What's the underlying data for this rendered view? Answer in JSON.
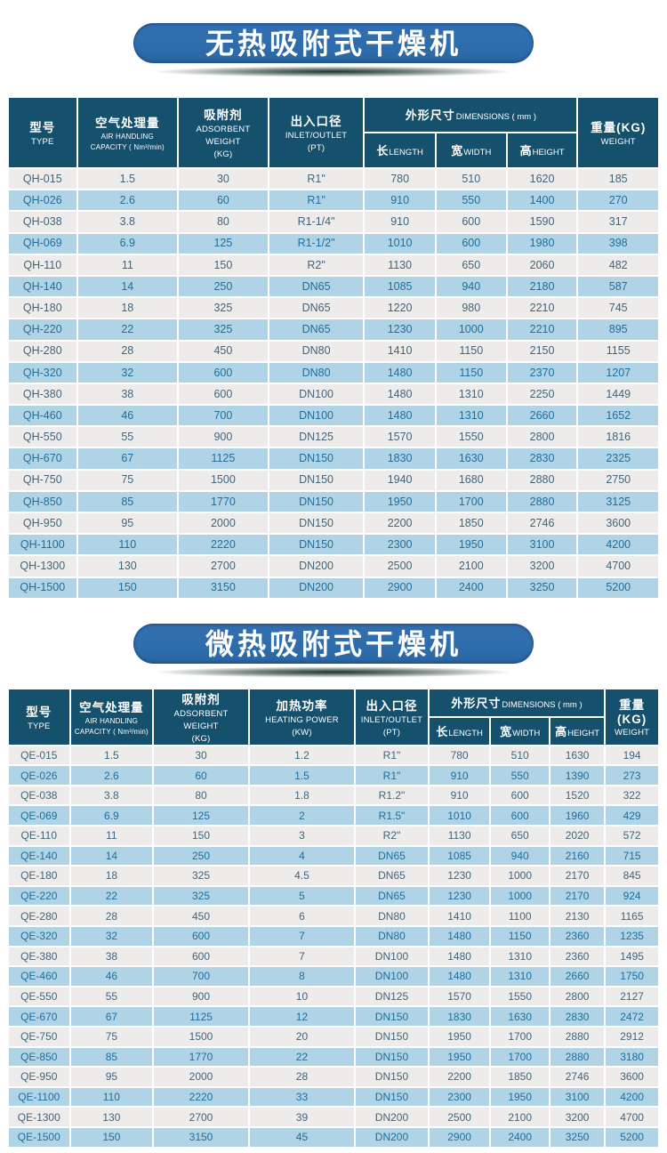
{
  "colors": {
    "title_blue": "#2e6dac",
    "header_blue": "#15506d",
    "row_light": "#edecea",
    "row_blue": "#b0d4e5",
    "text_light_row": "#42647a",
    "text_blue_row": "#206e9c"
  },
  "sections": [
    {
      "title": "无热吸附式干燥机",
      "columns": [
        {
          "id": "type",
          "zh": "型号",
          "en_lines": [
            "TYPE"
          ]
        },
        {
          "id": "air-handling",
          "zh": "空气处理量",
          "en_lines": [
            "AIR HANDLING",
            "CAPACITY ( Nm³/min)"
          ],
          "small": true
        },
        {
          "id": "adsorbent",
          "zh": "吸附剂",
          "en_lines": [
            "ADSORBENT",
            "WEIGHT",
            "(KG)"
          ]
        },
        {
          "id": "inlet-outlet",
          "zh": "出入口径",
          "en_lines": [
            "INLET/OUTLET",
            "(PT)"
          ]
        },
        {
          "id": "dimensions",
          "group": true,
          "zh": "外形尺寸",
          "en": "DIMENSIONS ( mm )",
          "children": [
            {
              "id": "length",
              "zh": "长",
              "en": "LENGTH"
            },
            {
              "id": "width",
              "zh": "宽",
              "en": "WIDTH"
            },
            {
              "id": "height",
              "zh": "高",
              "en": "HEIGHT"
            }
          ]
        },
        {
          "id": "weight",
          "zh": "重量(KG)",
          "en_lines": [
            "WEIGHT"
          ]
        }
      ],
      "rows": [
        [
          "QH-015",
          "1.5",
          "30",
          "R1\"",
          "780",
          "510",
          "1620",
          "185"
        ],
        [
          "QH-026",
          "2.6",
          "60",
          "R1\"",
          "910",
          "550",
          "1400",
          "270"
        ],
        [
          "QH-038",
          "3.8",
          "80",
          "R1-1/4\"",
          "910",
          "600",
          "1590",
          "317"
        ],
        [
          "QH-069",
          "6.9",
          "125",
          "R1-1/2\"",
          "1010",
          "600",
          "1980",
          "398"
        ],
        [
          "QH-110",
          "11",
          "150",
          "R2\"",
          "1130",
          "650",
          "2060",
          "482"
        ],
        [
          "QH-140",
          "14",
          "250",
          "DN65",
          "1085",
          "940",
          "2180",
          "587"
        ],
        [
          "QH-180",
          "18",
          "325",
          "DN65",
          "1220",
          "980",
          "2210",
          "745"
        ],
        [
          "QH-220",
          "22",
          "325",
          "DN65",
          "1230",
          "1000",
          "2210",
          "895"
        ],
        [
          "QH-280",
          "28",
          "450",
          "DN80",
          "1410",
          "1150",
          "2150",
          "1155"
        ],
        [
          "QH-320",
          "32",
          "600",
          "DN80",
          "1480",
          "1150",
          "2370",
          "1207"
        ],
        [
          "QH-380",
          "38",
          "600",
          "DN100",
          "1480",
          "1310",
          "2250",
          "1449"
        ],
        [
          "QH-460",
          "46",
          "700",
          "DN100",
          "1480",
          "1310",
          "2660",
          "1652"
        ],
        [
          "QH-550",
          "55",
          "900",
          "DN125",
          "1570",
          "1550",
          "2800",
          "1816"
        ],
        [
          "QH-670",
          "67",
          "1125",
          "DN150",
          "1830",
          "1630",
          "2830",
          "2325"
        ],
        [
          "QH-750",
          "75",
          "1500",
          "DN150",
          "1940",
          "1680",
          "2880",
          "2750"
        ],
        [
          "QH-850",
          "85",
          "1770",
          "DN150",
          "1950",
          "1700",
          "2880",
          "3125"
        ],
        [
          "QH-950",
          "95",
          "2000",
          "DN150",
          "2200",
          "1850",
          "2746",
          "3600"
        ],
        [
          "QH-1100",
          "110",
          "2220",
          "DN150",
          "2300",
          "1950",
          "3100",
          "4200"
        ],
        [
          "QH-1300",
          "130",
          "2700",
          "DN200",
          "2500",
          "2100",
          "3200",
          "4700"
        ],
        [
          "QH-1500",
          "150",
          "3150",
          "DN200",
          "2900",
          "2400",
          "3250",
          "5200"
        ]
      ]
    },
    {
      "title": "微热吸附式干燥机",
      "columns": [
        {
          "id": "type",
          "zh": "型号",
          "en_lines": [
            "TYPE"
          ]
        },
        {
          "id": "air-handling",
          "zh": "空气处理量",
          "en_lines": [
            "AIR HANDLING",
            "CAPACITY ( Nm³/min)"
          ],
          "small": true
        },
        {
          "id": "adsorbent",
          "zh": "吸附剂",
          "en_lines": [
            "ADSORBENT",
            "WEIGHT",
            "(KG)"
          ]
        },
        {
          "id": "heating-power",
          "zh": "加热功率",
          "en_lines": [
            "HEATING POWER",
            "(KW)"
          ]
        },
        {
          "id": "inlet-outlet",
          "zh": "出入口径",
          "en_lines": [
            "INLET/OUTLET",
            "(PT)"
          ]
        },
        {
          "id": "dimensions",
          "group": true,
          "zh": "外形尺寸",
          "en": "DIMENSIONS ( mm )",
          "children": [
            {
              "id": "length",
              "zh": "长",
              "en": "LENGTH"
            },
            {
              "id": "width",
              "zh": "宽",
              "en": "WIDTH"
            },
            {
              "id": "height",
              "zh": "高",
              "en": "HEIGHT"
            }
          ]
        },
        {
          "id": "weight",
          "zh": "重量(KG)",
          "en_lines": [
            "WEIGHT"
          ]
        }
      ],
      "rows": [
        [
          "QE-015",
          "1.5",
          "30",
          "1.2",
          "R1\"",
          "780",
          "510",
          "1630",
          "194"
        ],
        [
          "QE-026",
          "2.6",
          "60",
          "1.5",
          "R1\"",
          "910",
          "550",
          "1390",
          "273"
        ],
        [
          "QE-038",
          "3.8",
          "80",
          "1.8",
          "R1.2\"",
          "910",
          "600",
          "1520",
          "322"
        ],
        [
          "QE-069",
          "6.9",
          "125",
          "2",
          "R1.5\"",
          "1010",
          "600",
          "1960",
          "429"
        ],
        [
          "QE-110",
          "11",
          "150",
          "3",
          "R2\"",
          "1130",
          "650",
          "2020",
          "572"
        ],
        [
          "QE-140",
          "14",
          "250",
          "4",
          "DN65",
          "1085",
          "940",
          "2160",
          "715"
        ],
        [
          "QE-180",
          "18",
          "325",
          "4.5",
          "DN65",
          "1230",
          "1000",
          "2170",
          "845"
        ],
        [
          "QE-220",
          "22",
          "325",
          "5",
          "DN65",
          "1230",
          "1000",
          "2170",
          "924"
        ],
        [
          "QE-280",
          "28",
          "450",
          "6",
          "DN80",
          "1410",
          "1100",
          "2130",
          "1165"
        ],
        [
          "QE-320",
          "32",
          "600",
          "7",
          "DN80",
          "1480",
          "1150",
          "2360",
          "1235"
        ],
        [
          "QE-380",
          "38",
          "600",
          "7",
          "DN100",
          "1480",
          "1310",
          "2360",
          "1495"
        ],
        [
          "QE-460",
          "46",
          "700",
          "8",
          "DN100",
          "1480",
          "1310",
          "2660",
          "1750"
        ],
        [
          "QE-550",
          "55",
          "900",
          "10",
          "DN125",
          "1570",
          "1550",
          "2800",
          "2127"
        ],
        [
          "QE-670",
          "67",
          "1125",
          "12",
          "DN150",
          "1830",
          "1630",
          "2830",
          "2472"
        ],
        [
          "QE-750",
          "75",
          "1500",
          "20",
          "DN150",
          "1950",
          "1700",
          "2880",
          "2912"
        ],
        [
          "QE-850",
          "85",
          "1770",
          "22",
          "DN150",
          "1950",
          "1700",
          "2880",
          "3180"
        ],
        [
          "QE-950",
          "95",
          "2000",
          "28",
          "DN150",
          "2200",
          "1850",
          "2746",
          "3600"
        ],
        [
          "QE-1100",
          "110",
          "2220",
          "33",
          "DN150",
          "2300",
          "1950",
          "3100",
          "4200"
        ],
        [
          "QE-1300",
          "130",
          "2700",
          "39",
          "DN200",
          "2500",
          "2100",
          "3200",
          "4700"
        ],
        [
          "QE-1500",
          "150",
          "3150",
          "45",
          "DN200",
          "2900",
          "2400",
          "3250",
          "5200"
        ]
      ]
    }
  ]
}
